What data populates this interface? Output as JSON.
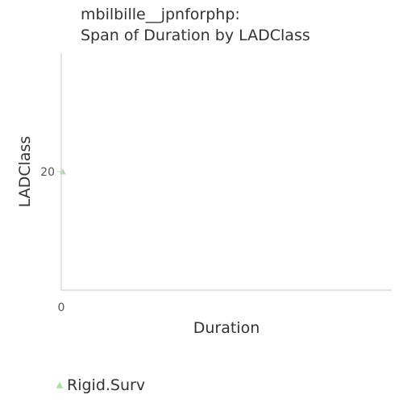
{
  "chart_data": {
    "type": "scatter",
    "title_lines": [
      "mbilbille__jpnforphp:",
      "Span of Duration by LADClass"
    ],
    "xlabel": "Duration",
    "ylabel": "LADClass",
    "x_ticks": [
      "0"
    ],
    "y_ticks": [
      "20"
    ],
    "xlim": [
      0,
      1
    ],
    "ylim": [
      0,
      40
    ],
    "grid": false,
    "legend_position": "bottom-left",
    "series": [
      {
        "name": "Rigid.Surv",
        "marker": "triangle",
        "color": "#b5dcab",
        "points": [
          {
            "x": 0,
            "y": 20
          }
        ]
      }
    ]
  }
}
